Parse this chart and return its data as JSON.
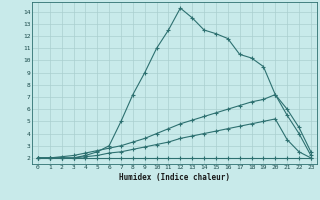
{
  "xlabel": "Humidex (Indice chaleur)",
  "bg_color": "#c8eaea",
  "grid_color": "#aacfcf",
  "line_color": "#2d7070",
  "xlim": [
    -0.5,
    23.5
  ],
  "ylim": [
    1.5,
    14.8
  ],
  "xticks": [
    0,
    1,
    2,
    3,
    4,
    5,
    6,
    7,
    8,
    9,
    10,
    11,
    12,
    13,
    14,
    15,
    16,
    17,
    18,
    19,
    20,
    21,
    22,
    23
  ],
  "yticks": [
    2,
    3,
    4,
    5,
    6,
    7,
    8,
    9,
    10,
    11,
    12,
    13,
    14
  ],
  "series": [
    {
      "x": [
        0,
        1,
        2,
        3,
        4,
        5,
        6,
        7,
        8,
        9,
        10,
        11,
        12,
        13,
        14,
        15,
        16,
        17,
        18,
        19,
        20,
        21,
        22,
        23
      ],
      "y": [
        2,
        2,
        2,
        2,
        2.2,
        2.5,
        3.0,
        5.0,
        7.2,
        9.0,
        11.0,
        12.5,
        14.3,
        13.5,
        12.5,
        12.2,
        11.8,
        10.5,
        10.2,
        9.5,
        7.2,
        6.0,
        4.5,
        2.5
      ]
    },
    {
      "x": [
        0,
        1,
        2,
        3,
        4,
        5,
        6,
        7,
        8,
        9,
        10,
        11,
        12,
        13,
        14,
        15,
        16,
        17,
        18,
        19,
        20,
        21,
        22,
        23
      ],
      "y": [
        2.0,
        2.0,
        2.1,
        2.2,
        2.4,
        2.6,
        2.8,
        3.0,
        3.3,
        3.6,
        4.0,
        4.4,
        4.8,
        5.1,
        5.4,
        5.7,
        6.0,
        6.3,
        6.6,
        6.8,
        7.2,
        5.5,
        4.0,
        2.2
      ]
    },
    {
      "x": [
        0,
        1,
        2,
        3,
        4,
        5,
        6,
        7,
        8,
        9,
        10,
        11,
        12,
        13,
        14,
        15,
        16,
        17,
        18,
        19,
        20,
        21,
        22,
        23
      ],
      "y": [
        2.0,
        2.0,
        2.0,
        2.0,
        2.1,
        2.2,
        2.4,
        2.5,
        2.7,
        2.9,
        3.1,
        3.3,
        3.6,
        3.8,
        4.0,
        4.2,
        4.4,
        4.6,
        4.8,
        5.0,
        5.2,
        3.5,
        2.5,
        2.0
      ]
    },
    {
      "x": [
        0,
        1,
        2,
        3,
        4,
        5,
        6,
        7,
        8,
        9,
        10,
        11,
        12,
        13,
        14,
        15,
        16,
        17,
        18,
        19,
        20,
        21,
        22,
        23
      ],
      "y": [
        2.0,
        2.0,
        2.0,
        2.0,
        2.0,
        2.0,
        2.0,
        2.0,
        2.0,
        2.0,
        2.0,
        2.0,
        2.0,
        2.0,
        2.0,
        2.0,
        2.0,
        2.0,
        2.0,
        2.0,
        2.0,
        2.0,
        2.0,
        2.0
      ]
    }
  ]
}
